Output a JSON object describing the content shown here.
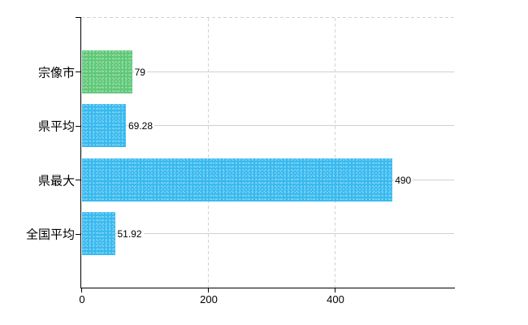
{
  "chart_data": {
    "type": "bar",
    "orientation": "horizontal",
    "title": "",
    "categories": [
      "宗像市",
      "県平均",
      "県最大",
      "全国平均"
    ],
    "values": [
      79,
      69.28,
      490,
      51.92
    ],
    "series": [
      {
        "name": "宗像市",
        "value": 79,
        "color_key": "highlight"
      },
      {
        "name": "県平均",
        "value": 69.28,
        "color_key": "default"
      },
      {
        "name": "県最大",
        "value": 490,
        "color_key": "default"
      },
      {
        "name": "全国平均",
        "value": 51.92,
        "color_key": "default"
      }
    ],
    "bar_color_keys": [
      "highlight",
      "default",
      "default",
      "default"
    ],
    "x_tick_labels": [
      "0",
      "200",
      "400"
    ],
    "x_tick_values": [
      0,
      200,
      400
    ],
    "xlim": [
      0,
      588
    ],
    "legend": "none",
    "grid": {
      "horizontal_solid_per_category": true,
      "vertical_dashed_at_ticks": true,
      "top_border_dashed": true
    },
    "colors": {
      "bar_highlight": "#5ec878",
      "bar_highlight_dot": "#9adda8",
      "bar_default": "#38b9ee",
      "bar_default_dot": "#7fd4f6",
      "grid_horizontal": "#c9d3c9",
      "grid_vertical": "#d8d2d2",
      "axis": "#000000",
      "text": "#000000",
      "background": "#ffffff"
    }
  }
}
